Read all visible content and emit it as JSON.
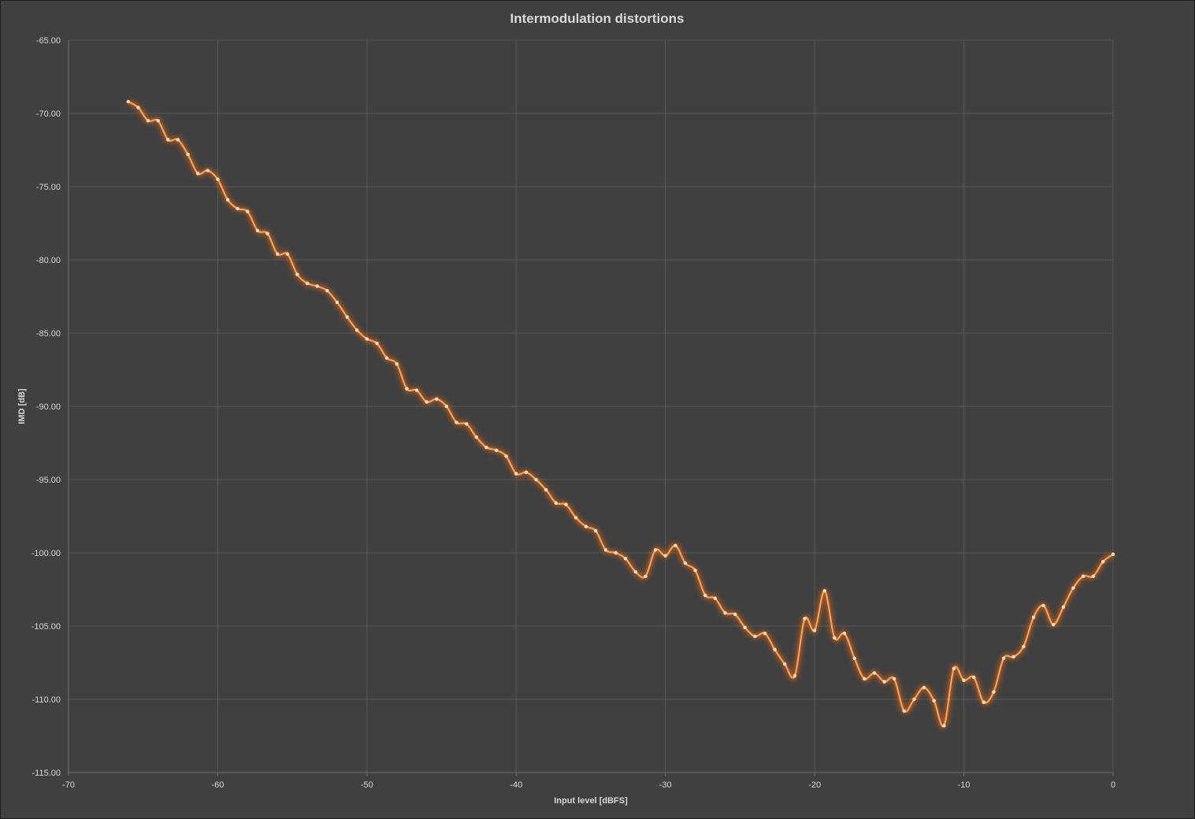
{
  "chart_data": {
    "type": "line",
    "title": "Intermodulation distortions",
    "xlabel": "Input level [dBFS]",
    "ylabel": "IMD [dB]",
    "xlim": [
      -70,
      0
    ],
    "ylim": [
      -115,
      -65
    ],
    "x_ticks": [
      "-70",
      "-60",
      "-50",
      "-40",
      "-30",
      "-20",
      "-10",
      "0"
    ],
    "y_ticks": [
      "-65.00",
      "-70.00",
      "-75.00",
      "-80.00",
      "-85.00",
      "-90.00",
      "-95.00",
      "-100.00",
      "-105.00",
      "-110.00",
      "-115.00"
    ],
    "grid": true,
    "line_color": "#ffa050",
    "glow_color": "#e86a10",
    "background_color": "#404040",
    "series": [
      {
        "x": [
          -66.0,
          -65.33,
          -64.67,
          -64.0,
          -63.33,
          -62.67,
          -62.0,
          -61.33,
          -60.67,
          -60.0,
          -59.33,
          -58.67,
          -58.0,
          -57.33,
          -56.67,
          -56.0,
          -55.33,
          -54.67,
          -54.0,
          -53.33,
          -52.67,
          -52.0,
          -51.33,
          -50.67,
          -50.0,
          -49.33,
          -48.67,
          -48.0,
          -47.33,
          -46.67,
          -46.0,
          -45.33,
          -44.67,
          -44.0,
          -43.33,
          -42.67,
          -42.0,
          -41.33,
          -40.67,
          -40.0,
          -39.33,
          -38.67,
          -38.0,
          -37.33,
          -36.67,
          -36.0,
          -35.33,
          -34.67,
          -34.0,
          -33.33,
          -32.67,
          -32.0,
          -31.33,
          -30.67,
          -30.0,
          -29.33,
          -28.67,
          -28.0,
          -27.33,
          -26.67,
          -26.0,
          -25.33,
          -24.67,
          -24.0,
          -23.33,
          -22.67,
          -22.0,
          -21.33,
          -20.67,
          -20.0,
          -19.33,
          -18.67,
          -18.0,
          -17.33,
          -16.67,
          -16.0,
          -15.33,
          -14.67,
          -14.0,
          -13.33,
          -12.67,
          -12.0,
          -11.33,
          -10.67,
          -10.0,
          -9.33,
          -8.67,
          -8.0,
          -7.33,
          -6.67,
          -6.0,
          -5.33,
          -4.67,
          -4.0,
          -3.33,
          -2.67,
          -2.0,
          -1.33,
          -0.67,
          0.0
        ],
        "y": [
          -69.2,
          -69.6,
          -70.5,
          -70.5,
          -71.8,
          -71.8,
          -72.8,
          -74.1,
          -73.9,
          -74.5,
          -75.9,
          -76.5,
          -76.7,
          -78.0,
          -78.2,
          -79.6,
          -79.6,
          -81.0,
          -81.6,
          -81.8,
          -82.1,
          -82.9,
          -83.9,
          -84.8,
          -85.4,
          -85.7,
          -86.7,
          -87.1,
          -88.8,
          -88.9,
          -89.7,
          -89.5,
          -90.0,
          -91.1,
          -91.2,
          -92.1,
          -92.8,
          -93.0,
          -93.4,
          -94.6,
          -94.5,
          -95.0,
          -95.7,
          -96.6,
          -96.7,
          -97.6,
          -98.2,
          -98.5,
          -99.8,
          -100.0,
          -100.4,
          -101.3,
          -101.6,
          -99.8,
          -100.2,
          -99.5,
          -100.7,
          -101.2,
          -102.9,
          -103.1,
          -104.1,
          -104.2,
          -105.1,
          -105.7,
          -105.5,
          -106.6,
          -107.6,
          -108.4,
          -104.5,
          -105.3,
          -102.6,
          -105.8,
          -105.5,
          -107.2,
          -108.6,
          -108.2,
          -108.8,
          -108.6,
          -110.8,
          -110.0,
          -109.2,
          -110.1,
          -111.8,
          -107.9,
          -108.7,
          -108.5,
          -110.2,
          -109.5,
          -107.2,
          -107.1,
          -106.4,
          -104.4,
          -103.6,
          -104.9,
          -103.7,
          -102.4,
          -101.6,
          -101.6,
          -100.6,
          -100.1
        ]
      }
    ]
  }
}
